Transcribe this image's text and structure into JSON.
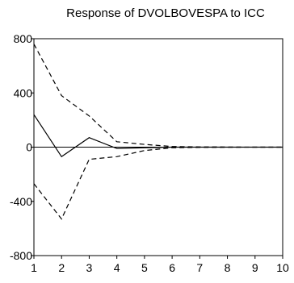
{
  "chart_data": {
    "type": "line",
    "title": "Response of DVOLBOVESPA to ICC",
    "xlabel": "",
    "ylabel": "",
    "x": [
      1,
      2,
      3,
      4,
      5,
      6,
      7,
      8,
      9,
      10
    ],
    "xlim": [
      1,
      10
    ],
    "ylim": [
      -800,
      800
    ],
    "x_ticks": [
      "1",
      "2",
      "3",
      "4",
      "5",
      "6",
      "7",
      "8",
      "9",
      "10"
    ],
    "y_ticks": [
      "800",
      "400",
      "0",
      "-400",
      "-800"
    ],
    "y_tick_values": [
      800,
      400,
      0,
      -400,
      -800
    ],
    "grid": false,
    "zero_line": true,
    "series": [
      {
        "role": "response",
        "style": "solid",
        "color": "#000000",
        "values": [
          240,
          -70,
          70,
          -10,
          -5,
          0,
          0,
          0,
          0,
          0
        ]
      },
      {
        "role": "upper-band",
        "style": "dashed",
        "color": "#000000",
        "values": [
          760,
          380,
          230,
          40,
          20,
          5,
          2,
          1,
          0,
          0
        ]
      },
      {
        "role": "lower-band",
        "style": "dashed",
        "color": "#000000",
        "values": [
          -270,
          -530,
          -90,
          -70,
          -25,
          -5,
          -2,
          -1,
          0,
          0
        ]
      }
    ]
  }
}
